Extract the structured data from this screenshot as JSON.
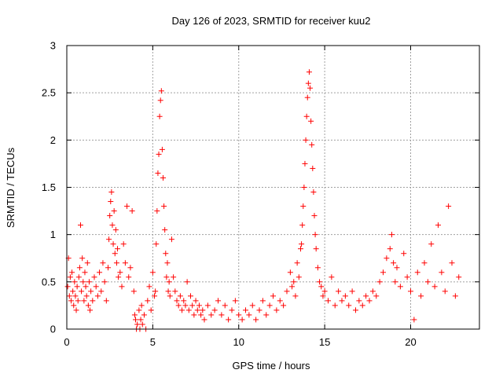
{
  "chart_data": {
    "type": "scatter",
    "title": "Day 126 of 2023, SRMTID for receiver kuu2",
    "xlabel": "GPS time / hours",
    "ylabel": "SRMTID / TECUs",
    "xlim": [
      0,
      24
    ],
    "ylim": [
      0,
      3
    ],
    "xticks": [
      0,
      5,
      10,
      15,
      20
    ],
    "yticks": [
      0,
      0.5,
      1,
      1.5,
      2,
      2.5,
      3
    ],
    "xtick_labels": [
      "0",
      "5",
      "10",
      "15",
      "20"
    ],
    "ytick_labels": [
      "0",
      "0.5",
      "1",
      "1.5",
      "2",
      "2.5",
      "3"
    ],
    "grid": true,
    "marker": "+",
    "color": "#ff0000",
    "series": [
      {
        "name": "SRMTID",
        "points": [
          [
            0.05,
            0.45
          ],
          [
            0.1,
            0.75
          ],
          [
            0.15,
            0.35
          ],
          [
            0.2,
            0.55
          ],
          [
            0.25,
            0.3
          ],
          [
            0.3,
            0.6
          ],
          [
            0.35,
            0.4
          ],
          [
            0.4,
            0.25
          ],
          [
            0.45,
            0.5
          ],
          [
            0.5,
            0.35
          ],
          [
            0.55,
            0.2
          ],
          [
            0.6,
            0.45
          ],
          [
            0.65,
            0.3
          ],
          [
            0.7,
            0.55
          ],
          [
            0.75,
            0.65
          ],
          [
            0.8,
            1.1
          ],
          [
            0.85,
            0.4
          ],
          [
            0.9,
            0.75
          ],
          [
            0.95,
            0.5
          ],
          [
            1.0,
            0.3
          ],
          [
            1.05,
            0.6
          ],
          [
            1.1,
            0.45
          ],
          [
            1.15,
            0.35
          ],
          [
            1.2,
            0.7
          ],
          [
            1.25,
            0.25
          ],
          [
            1.3,
            0.5
          ],
          [
            1.35,
            0.2
          ],
          [
            1.4,
            0.4
          ],
          [
            1.5,
            0.3
          ],
          [
            1.6,
            0.55
          ],
          [
            1.7,
            0.45
          ],
          [
            1.8,
            0.35
          ],
          [
            1.9,
            0.6
          ],
          [
            2.0,
            0.4
          ],
          [
            2.1,
            0.7
          ],
          [
            2.2,
            0.5
          ],
          [
            2.3,
            0.3
          ],
          [
            2.4,
            0.65
          ],
          [
            2.45,
            0.95
          ],
          [
            2.5,
            1.2
          ],
          [
            2.55,
            1.35
          ],
          [
            2.6,
            1.45
          ],
          [
            2.65,
            1.1
          ],
          [
            2.7,
            0.9
          ],
          [
            2.75,
            1.25
          ],
          [
            2.8,
            0.8
          ],
          [
            2.85,
            1.05
          ],
          [
            2.9,
            0.7
          ],
          [
            2.95,
            0.85
          ],
          [
            3.0,
            0.55
          ],
          [
            3.1,
            0.6
          ],
          [
            3.2,
            0.45
          ],
          [
            3.3,
            0.9
          ],
          [
            3.4,
            0.7
          ],
          [
            3.5,
            1.3
          ],
          [
            3.6,
            0.55
          ],
          [
            3.7,
            0.65
          ],
          [
            3.8,
            1.25
          ],
          [
            3.9,
            0.4
          ],
          [
            3.95,
            0.15
          ],
          [
            4.0,
            0.1
          ],
          [
            4.05,
            0.0
          ],
          [
            4.1,
            0.05
          ],
          [
            4.2,
            0.2
          ],
          [
            4.25,
            0.0
          ],
          [
            4.3,
            0.1
          ],
          [
            4.35,
            0.25
          ],
          [
            4.4,
            0.05
          ],
          [
            4.5,
            0.15
          ],
          [
            4.6,
            0.0
          ],
          [
            4.7,
            0.3
          ],
          [
            4.8,
            0.45
          ],
          [
            4.9,
            0.2
          ],
          [
            5.0,
            0.6
          ],
          [
            5.1,
            0.35
          ],
          [
            5.15,
            0.4
          ],
          [
            5.2,
            0.9
          ],
          [
            5.25,
            1.25
          ],
          [
            5.3,
            1.65
          ],
          [
            5.35,
            1.85
          ],
          [
            5.4,
            2.25
          ],
          [
            5.45,
            2.42
          ],
          [
            5.5,
            2.52
          ],
          [
            5.55,
            1.9
          ],
          [
            5.6,
            1.6
          ],
          [
            5.65,
            1.3
          ],
          [
            5.7,
            1.05
          ],
          [
            5.75,
            0.8
          ],
          [
            5.8,
            0.55
          ],
          [
            5.85,
            0.7
          ],
          [
            5.9,
            0.4
          ],
          [
            5.95,
            0.5
          ],
          [
            6.0,
            0.35
          ],
          [
            6.1,
            0.95
          ],
          [
            6.2,
            0.55
          ],
          [
            6.3,
            0.4
          ],
          [
            6.4,
            0.3
          ],
          [
            6.5,
            0.25
          ],
          [
            6.6,
            0.35
          ],
          [
            6.7,
            0.2
          ],
          [
            6.8,
            0.3
          ],
          [
            6.9,
            0.25
          ],
          [
            7.0,
            0.5
          ],
          [
            7.1,
            0.2
          ],
          [
            7.2,
            0.35
          ],
          [
            7.3,
            0.25
          ],
          [
            7.4,
            0.15
          ],
          [
            7.5,
            0.3
          ],
          [
            7.6,
            0.2
          ],
          [
            7.7,
            0.25
          ],
          [
            7.8,
            0.15
          ],
          [
            7.9,
            0.2
          ],
          [
            8.0,
            0.1
          ],
          [
            8.2,
            0.25
          ],
          [
            8.4,
            0.15
          ],
          [
            8.6,
            0.2
          ],
          [
            8.8,
            0.3
          ],
          [
            9.0,
            0.15
          ],
          [
            9.2,
            0.25
          ],
          [
            9.4,
            0.1
          ],
          [
            9.6,
            0.2
          ],
          [
            9.8,
            0.3
          ],
          [
            10.0,
            0.15
          ],
          [
            10.2,
            0.1
          ],
          [
            10.4,
            0.2
          ],
          [
            10.6,
            0.15
          ],
          [
            10.8,
            0.25
          ],
          [
            11.0,
            0.1
          ],
          [
            11.2,
            0.2
          ],
          [
            11.4,
            0.3
          ],
          [
            11.6,
            0.15
          ],
          [
            11.8,
            0.25
          ],
          [
            12.0,
            0.35
          ],
          [
            12.2,
            0.2
          ],
          [
            12.4,
            0.3
          ],
          [
            12.6,
            0.25
          ],
          [
            12.8,
            0.4
          ],
          [
            13.0,
            0.6
          ],
          [
            13.1,
            0.45
          ],
          [
            13.2,
            0.5
          ],
          [
            13.3,
            0.35
          ],
          [
            13.4,
            0.7
          ],
          [
            13.5,
            0.55
          ],
          [
            13.6,
            0.85
          ],
          [
            13.65,
            0.9
          ],
          [
            13.7,
            1.1
          ],
          [
            13.75,
            1.3
          ],
          [
            13.8,
            1.5
          ],
          [
            13.85,
            1.75
          ],
          [
            13.9,
            2.0
          ],
          [
            13.95,
            2.25
          ],
          [
            14.0,
            2.45
          ],
          [
            14.05,
            2.6
          ],
          [
            14.1,
            2.72
          ],
          [
            14.15,
            2.55
          ],
          [
            14.2,
            2.2
          ],
          [
            14.25,
            1.95
          ],
          [
            14.3,
            1.7
          ],
          [
            14.35,
            1.45
          ],
          [
            14.4,
            1.2
          ],
          [
            14.45,
            1.0
          ],
          [
            14.5,
            0.85
          ],
          [
            14.6,
            0.65
          ],
          [
            14.7,
            0.5
          ],
          [
            14.8,
            0.45
          ],
          [
            14.9,
            0.35
          ],
          [
            15.0,
            0.4
          ],
          [
            15.2,
            0.3
          ],
          [
            15.4,
            0.55
          ],
          [
            15.6,
            0.25
          ],
          [
            15.8,
            0.4
          ],
          [
            16.0,
            0.3
          ],
          [
            16.2,
            0.35
          ],
          [
            16.4,
            0.25
          ],
          [
            16.6,
            0.4
          ],
          [
            16.8,
            0.2
          ],
          [
            17.0,
            0.3
          ],
          [
            17.2,
            0.25
          ],
          [
            17.4,
            0.35
          ],
          [
            17.6,
            0.3
          ],
          [
            17.8,
            0.4
          ],
          [
            18.0,
            0.35
          ],
          [
            18.2,
            0.5
          ],
          [
            18.4,
            0.6
          ],
          [
            18.6,
            0.75
          ],
          [
            18.8,
            0.85
          ],
          [
            18.9,
            1.0
          ],
          [
            19.0,
            0.7
          ],
          [
            19.1,
            0.5
          ],
          [
            19.2,
            0.65
          ],
          [
            19.4,
            0.45
          ],
          [
            19.6,
            0.8
          ],
          [
            19.8,
            0.55
          ],
          [
            20.0,
            0.4
          ],
          [
            20.2,
            0.1
          ],
          [
            20.4,
            0.6
          ],
          [
            20.6,
            0.35
          ],
          [
            20.8,
            0.7
          ],
          [
            21.0,
            0.5
          ],
          [
            21.2,
            0.9
          ],
          [
            21.4,
            0.45
          ],
          [
            21.6,
            1.1
          ],
          [
            21.8,
            0.6
          ],
          [
            22.0,
            0.4
          ],
          [
            22.2,
            1.3
          ],
          [
            22.4,
            0.7
          ],
          [
            22.6,
            0.35
          ],
          [
            22.8,
            0.55
          ]
        ]
      }
    ]
  }
}
